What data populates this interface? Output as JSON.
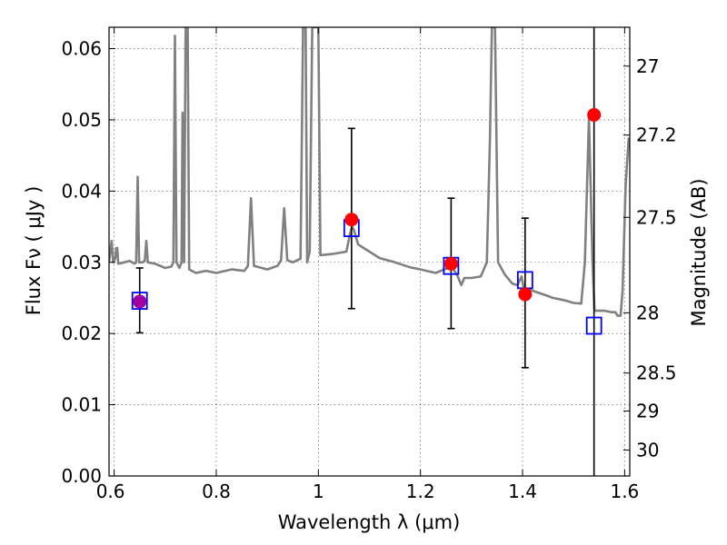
{
  "chart_data": {
    "type": "scatter",
    "title": "",
    "xlabel": "Wavelength  λ (μm)",
    "ylabel": "Flux  Fν  ( μJy )",
    "ylabel_right": "Magnitude (AB)",
    "xlim": [
      0.59,
      1.61
    ],
    "ylim": [
      0.0,
      0.063
    ],
    "grid": true,
    "x_ticks": [
      {
        "value": 0.6,
        "label": ""
      },
      {
        "value": 0.8,
        "label": "0.8"
      },
      {
        "value": 1.0,
        "label": "1"
      },
      {
        "value": 1.2,
        "label": "1.2"
      },
      {
        "value": 1.4,
        "label": "1.4"
      },
      {
        "value": 1.6,
        "label": "1.6"
      }
    ],
    "x_tick_edge_labels": [
      {
        "value": 0.6,
        "label": "0.6"
      }
    ],
    "y_ticks": [
      {
        "value": 0.0,
        "label": "0.00"
      },
      {
        "value": 0.01,
        "label": "0.01"
      },
      {
        "value": 0.02,
        "label": "0.02"
      },
      {
        "value": 0.03,
        "label": "0.03"
      },
      {
        "value": 0.04,
        "label": "0.04"
      },
      {
        "value": 0.05,
        "label": "0.05"
      },
      {
        "value": 0.06,
        "label": "0.06"
      }
    ],
    "right_ticks": [
      {
        "mag": 27.0,
        "label": "27"
      },
      {
        "mag": 27.2,
        "label": "27.2"
      },
      {
        "mag": 27.5,
        "label": "27.5"
      },
      {
        "mag": 28.0,
        "label": "28"
      },
      {
        "mag": 28.5,
        "label": "28.5"
      },
      {
        "mag": 29.0,
        "label": "29"
      },
      {
        "mag": 30.0,
        "label": "30"
      }
    ],
    "model_spectrum": {
      "color": "#808080",
      "points": [
        [
          0.59,
          0.03
        ],
        [
          0.595,
          0.033
        ],
        [
          0.598,
          0.03
        ],
        [
          0.602,
          0.0305
        ],
        [
          0.604,
          0.032
        ],
        [
          0.606,
          0.032
        ],
        [
          0.608,
          0.0298
        ],
        [
          0.62,
          0.03
        ],
        [
          0.63,
          0.0302
        ],
        [
          0.64,
          0.0298
        ],
        [
          0.643,
          0.03
        ],
        [
          0.646,
          0.042
        ],
        [
          0.649,
          0.03
        ],
        [
          0.656,
          0.03
        ],
        [
          0.66,
          0.0302
        ],
        [
          0.663,
          0.033
        ],
        [
          0.666,
          0.03
        ],
        [
          0.68,
          0.0298
        ],
        [
          0.7,
          0.0292
        ],
        [
          0.712,
          0.0294
        ],
        [
          0.716,
          0.03
        ],
        [
          0.719,
          0.0618
        ],
        [
          0.722,
          0.03
        ],
        [
          0.728,
          0.0292
        ],
        [
          0.732,
          0.03
        ],
        [
          0.734,
          0.051
        ],
        [
          0.737,
          0.03
        ],
        [
          0.74,
          0.063
        ],
        [
          0.744,
          0.063
        ],
        [
          0.747,
          0.029
        ],
        [
          0.76,
          0.0285
        ],
        [
          0.78,
          0.0288
        ],
        [
          0.8,
          0.0285
        ],
        [
          0.83,
          0.029
        ],
        [
          0.855,
          0.0288
        ],
        [
          0.862,
          0.0295
        ],
        [
          0.868,
          0.039
        ],
        [
          0.874,
          0.0295
        ],
        [
          0.9,
          0.029
        ],
        [
          0.92,
          0.0295
        ],
        [
          0.927,
          0.0303
        ],
        [
          0.933,
          0.0376
        ],
        [
          0.939,
          0.0303
        ],
        [
          0.95,
          0.03
        ],
        [
          0.965,
          0.0305
        ],
        [
          0.97,
          0.063
        ],
        [
          0.975,
          0.063
        ],
        [
          0.978,
          0.03
        ],
        [
          0.983,
          0.0315
        ],
        [
          0.988,
          0.063
        ],
        [
          1.0,
          0.063
        ],
        [
          1.004,
          0.031
        ],
        [
          1.03,
          0.0312
        ],
        [
          1.055,
          0.0315
        ],
        [
          1.062,
          0.034
        ],
        [
          1.066,
          0.035
        ],
        [
          1.07,
          0.0345
        ],
        [
          1.078,
          0.0325
        ],
        [
          1.1,
          0.0315
        ],
        [
          1.12,
          0.0306
        ],
        [
          1.15,
          0.03
        ],
        [
          1.18,
          0.0293
        ],
        [
          1.2,
          0.029
        ],
        [
          1.23,
          0.0285
        ],
        [
          1.25,
          0.0291
        ],
        [
          1.262,
          0.0293
        ],
        [
          1.272,
          0.0282
        ],
        [
          1.28,
          0.0268
        ],
        [
          1.286,
          0.0278
        ],
        [
          1.3,
          0.0278
        ],
        [
          1.318,
          0.028
        ],
        [
          1.33,
          0.03
        ],
        [
          1.336,
          0.047
        ],
        [
          1.34,
          0.063
        ],
        [
          1.346,
          0.063
        ],
        [
          1.352,
          0.03
        ],
        [
          1.365,
          0.0283
        ],
        [
          1.38,
          0.027
        ],
        [
          1.39,
          0.0268
        ],
        [
          1.398,
          0.028
        ],
        [
          1.402,
          0.0265
        ],
        [
          1.412,
          0.0262
        ],
        [
          1.42,
          0.026
        ],
        [
          1.44,
          0.0255
        ],
        [
          1.46,
          0.025
        ],
        [
          1.48,
          0.0247
        ],
        [
          1.5,
          0.0243
        ],
        [
          1.515,
          0.0242
        ],
        [
          1.522,
          0.03
        ],
        [
          1.53,
          0.0503
        ],
        [
          1.537,
          0.03
        ],
        [
          1.541,
          0.0232
        ],
        [
          1.56,
          0.0232
        ],
        [
          1.575,
          0.023
        ],
        [
          1.582,
          0.023
        ],
        [
          1.586,
          0.0225
        ],
        [
          1.592,
          0.0225
        ],
        [
          1.596,
          0.026
        ],
        [
          1.602,
          0.041
        ],
        [
          1.608,
          0.0475
        ]
      ]
    },
    "model_photometry": {
      "marker": "open-square",
      "color": "#0000ff",
      "points": [
        [
          0.65,
          0.0246
        ],
        [
          1.065,
          0.0348
        ],
        [
          1.26,
          0.0295
        ],
        [
          1.405,
          0.0275
        ],
        [
          1.54,
          0.0211
        ]
      ]
    },
    "observed_photometry": {
      "marker": "filled-circle",
      "color": "#ff0000",
      "color_first": "#a000a0",
      "points": [
        {
          "x": 0.65,
          "y": 0.0245,
          "yerr_low": 0.0201,
          "yerr_high": 0.0292
        },
        {
          "x": 1.065,
          "y": 0.036,
          "yerr_low": 0.0235,
          "yerr_high": 0.0488
        },
        {
          "x": 1.26,
          "y": 0.0298,
          "yerr_low": 0.0207,
          "yerr_high": 0.039
        },
        {
          "x": 1.405,
          "y": 0.0255,
          "yerr_low": 0.0152,
          "yerr_high": 0.0362
        },
        {
          "x": 1.54,
          "y": 0.0507,
          "yerr_low": 0.0,
          "yerr_high": 0.063
        }
      ]
    }
  }
}
